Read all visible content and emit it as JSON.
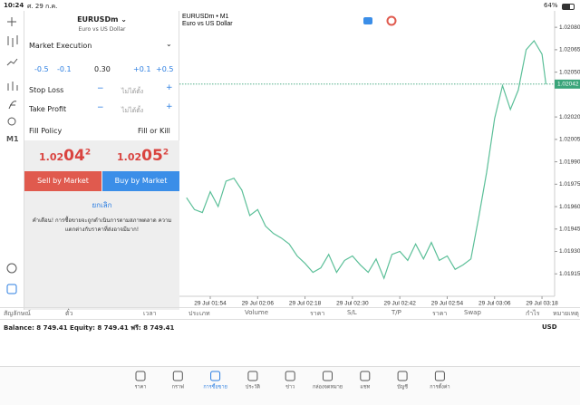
{
  "status_bar": {
    "time": "10:24",
    "date": "ศ. 29 ก.ค.",
    "battery": "64%"
  },
  "toolbar": {
    "timeframe": "M1"
  },
  "order_panel": {
    "symbol": "EURUSDm",
    "description": "Euro vs US Dollar",
    "execution": "Market Execution",
    "volume_steps": [
      "-0.5",
      "-0.1",
      "+0.1",
      "+0.5"
    ],
    "volume": "0.30",
    "stop_loss": {
      "label": "Stop Loss",
      "value": "ไม่ได้ตั้ง"
    },
    "take_profit": {
      "label": "Take Profit",
      "value": "ไม่ได้ตั้ง"
    },
    "fill_policy": {
      "label": "Fill Policy",
      "value": "Fill or Kill"
    },
    "bid": {
      "head": "1.02",
      "big": "04",
      "tail": "2"
    },
    "ask": {
      "head": "1.02",
      "big": "05",
      "tail": "2"
    },
    "sell_button": "Sell by Market",
    "buy_button": "Buy by Market",
    "cancel": "ยกเลิก",
    "warning": "คำเตือน! การซื้อขายจะถูกดำเนินการตามสภาพตลาด ความแตกต่างกับราคาที่ส่งอาจมีมาก!"
  },
  "chart_data": {
    "type": "line",
    "title": "EURUSDm • M1",
    "subtitle": "Euro vs US Dollar",
    "color": "#5bbf98",
    "x": [
      -6,
      -4,
      -2,
      0,
      2,
      4,
      6,
      8,
      10,
      12,
      14,
      16,
      18,
      20,
      22,
      24,
      26,
      28,
      30,
      32,
      34,
      36,
      38,
      40,
      42,
      44,
      46,
      48,
      50,
      52,
      54,
      56,
      58,
      60,
      62,
      64,
      66,
      68,
      70,
      72,
      74,
      76,
      78,
      80,
      82,
      84,
      85
    ],
    "values": [
      1.01966,
      1.01958,
      1.01956,
      1.0197,
      1.0196,
      1.01977,
      1.01979,
      1.01971,
      1.01954,
      1.01958,
      1.01947,
      1.01942,
      1.01939,
      1.01935,
      1.01927,
      1.01922,
      1.01916,
      1.01919,
      1.01928,
      1.01916,
      1.01924,
      1.01927,
      1.01921,
      1.01916,
      1.01925,
      1.01912,
      1.01928,
      1.0193,
      1.01924,
      1.01935,
      1.01925,
      1.01936,
      1.01924,
      1.01927,
      1.01918,
      1.01921,
      1.01925,
      1.01953,
      1.01983,
      1.02019,
      1.02041,
      1.02025,
      1.02038,
      1.02065,
      1.02071,
      1.02062,
      1.02042
    ],
    "current_price": {
      "value": 1.02042,
      "label": "1.02042"
    },
    "xlim": [
      -7.8,
      87.2
    ],
    "xticks": [
      {
        "value": 0,
        "label": "29 Jul 01:54"
      },
      {
        "value": 12,
        "label": "29 Jul 02:06"
      },
      {
        "value": 24,
        "label": "29 Jul 02:18"
      },
      {
        "value": 36,
        "label": "29 Jul 02:30"
      },
      {
        "value": 48,
        "label": "29 Jul 02:42"
      },
      {
        "value": 60,
        "label": "29 Jul 02:54"
      },
      {
        "value": 72,
        "label": "29 Jul 03:06"
      },
      {
        "value": 84,
        "label": "29 Jul 03:18"
      }
    ],
    "ylim": [
      1.019,
      1.02091
    ],
    "yticks": [
      {
        "value": 1.0208,
        "label": "1.02080"
      },
      {
        "value": 1.02065,
        "label": "1.02065"
      },
      {
        "value": 1.0205,
        "label": "1.02050"
      },
      {
        "value": 1.0202,
        "label": "1.02020"
      },
      {
        "value": 1.02005,
        "label": "1.02005"
      },
      {
        "value": 1.0199,
        "label": "1.01990"
      },
      {
        "value": 1.01975,
        "label": "1.01975"
      },
      {
        "value": 1.0196,
        "label": "1.01960"
      },
      {
        "value": 1.01945,
        "label": "1.01945"
      },
      {
        "value": 1.0193,
        "label": "1.01930"
      },
      {
        "value": 1.01915,
        "label": "1.01915"
      }
    ]
  },
  "positions_table": {
    "columns": [
      "สัญลักษณ์",
      "ตั๋ว",
      "เวลา",
      "ประเภท",
      "Volume",
      "ราคา",
      "S/L",
      "T/P",
      "ราคา",
      "Swap",
      "กำไร",
      "หมายเหตุ"
    ]
  },
  "account": {
    "summary": "Balance: 8 749.41 Equity: 8 749.41 ฟรี: 8 749.41",
    "currency": "USD"
  },
  "tab_bar": {
    "active": 2,
    "tabs": [
      "ราคา",
      "กราฟ",
      "การซื้อขาย",
      "ประวัติ",
      "ข่าว",
      "กล่องจดหมาย",
      "แชท",
      "บัญชี",
      "การตั้งค่า"
    ]
  }
}
